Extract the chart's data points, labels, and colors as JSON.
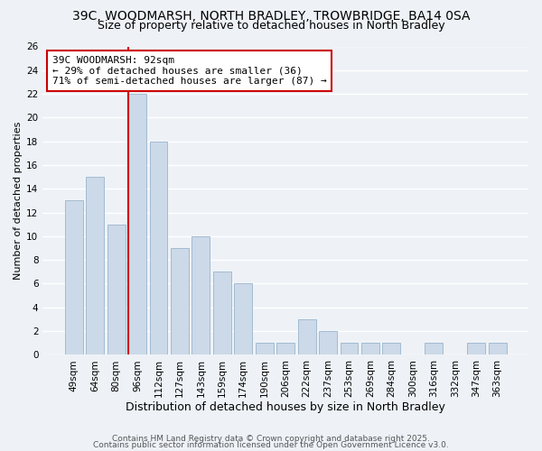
{
  "title": "39C, WOODMARSH, NORTH BRADLEY, TROWBRIDGE, BA14 0SA",
  "subtitle": "Size of property relative to detached houses in North Bradley",
  "xlabel": "Distribution of detached houses by size in North Bradley",
  "ylabel": "Number of detached properties",
  "bar_color": "#ccd9e8",
  "bar_edge_color": "#9ab4cc",
  "background_color": "#eef2f7",
  "grid_color": "#ffffff",
  "categories": [
    "49sqm",
    "64sqm",
    "80sqm",
    "96sqm",
    "112sqm",
    "127sqm",
    "143sqm",
    "159sqm",
    "174sqm",
    "190sqm",
    "206sqm",
    "222sqm",
    "237sqm",
    "253sqm",
    "269sqm",
    "284sqm",
    "300sqm",
    "316sqm",
    "332sqm",
    "347sqm",
    "363sqm"
  ],
  "values": [
    13,
    15,
    11,
    22,
    18,
    9,
    10,
    7,
    6,
    1,
    1,
    3,
    2,
    1,
    1,
    1,
    0,
    1,
    0,
    1,
    1
  ],
  "ylim": [
    0,
    26
  ],
  "yticks": [
    0,
    2,
    4,
    6,
    8,
    10,
    12,
    14,
    16,
    18,
    20,
    22,
    24,
    26
  ],
  "property_line_index": 3,
  "property_line_color": "#cc0000",
  "annotation_line1": "39C WOODMARSH: 92sqm",
  "annotation_line2": "← 29% of detached houses are smaller (36)",
  "annotation_line3": "71% of semi-detached houses are larger (87) →",
  "annotation_box_color": "#ffffff",
  "annotation_box_edge": "#cc0000",
  "footer_line1": "Contains HM Land Registry data © Crown copyright and database right 2025.",
  "footer_line2": "Contains public sector information licensed under the Open Government Licence v3.0.",
  "title_fontsize": 10,
  "subtitle_fontsize": 9,
  "xlabel_fontsize": 9,
  "ylabel_fontsize": 8,
  "tick_fontsize": 7.5,
  "annotation_fontsize": 8,
  "footer_fontsize": 6.5
}
